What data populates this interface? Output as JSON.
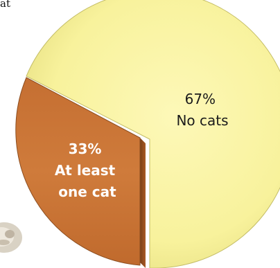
{
  "corner_text": "at",
  "colors": {
    "no_cats_fill": "#f8f29c",
    "no_cats_edge": "#b3ac57",
    "one_cat_fill": "#cd7839",
    "one_cat_edge": "#8b4d1f",
    "label_dark": "#1b1b1b",
    "label_light": "#ffffff"
  },
  "chart_data": {
    "type": "pie",
    "slices": [
      {
        "percent_label": "67%",
        "label": "No cats",
        "value": 67,
        "color": "#f8f29c"
      },
      {
        "percent_label": "33%",
        "label": "At least one cat",
        "value": 33,
        "color": "#cd7839"
      }
    ],
    "label_lines": {
      "no_cats": [
        "67%",
        "No cats"
      ],
      "one_cat": [
        "33%",
        "At least",
        "one cat"
      ]
    }
  },
  "decoration": {
    "photo_icon": "cat-photo-icon"
  }
}
